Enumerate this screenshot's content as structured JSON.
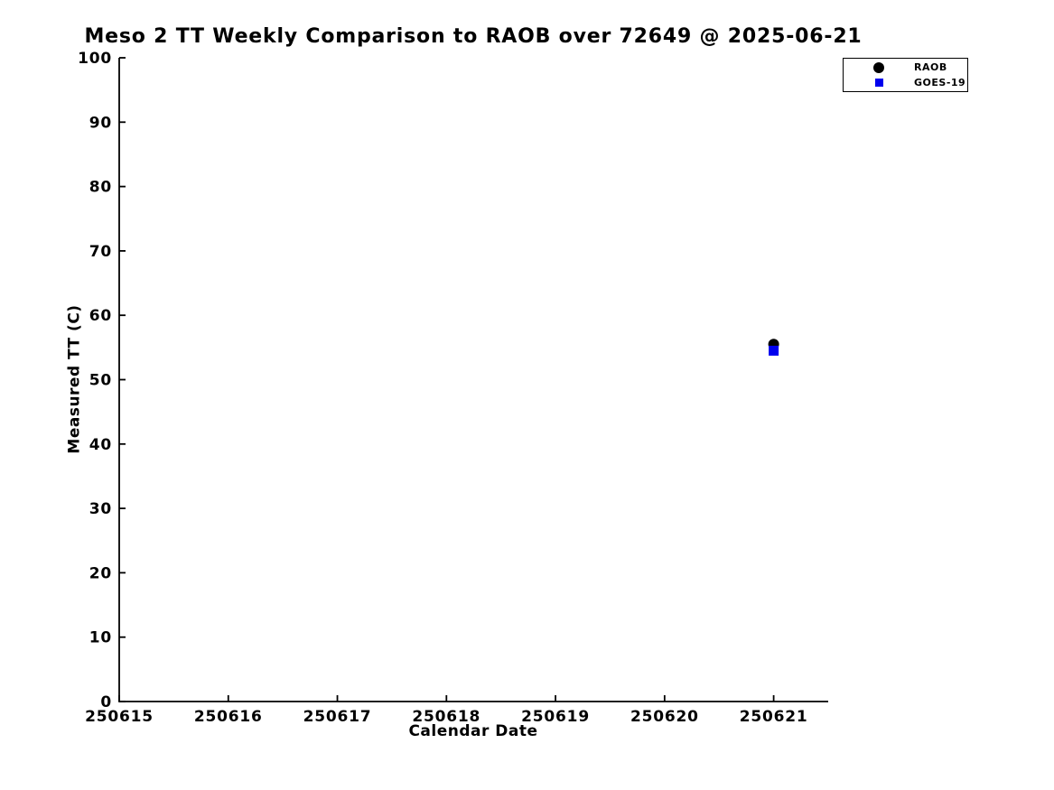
{
  "figure": {
    "background": "#ffffff",
    "text_color": "#000000"
  },
  "chart_data": {
    "type": "scatter",
    "title": "Meso 2 TT Weekly Comparison to RAOB over 72649 @ 2025-06-21",
    "xlabel": "Calendar Date",
    "ylabel": "Measured TT (C)",
    "xlim": [
      250615,
      250621.5
    ],
    "ylim": [
      0,
      100
    ],
    "x_ticks": [
      "250615",
      "250616",
      "250617",
      "250618",
      "250619",
      "250620",
      "250621"
    ],
    "y_ticks": [
      0,
      10,
      20,
      30,
      40,
      50,
      60,
      70,
      80,
      90,
      100
    ],
    "grid": false,
    "legend": {
      "position": "top-right",
      "entries": [
        {
          "label": "RAOB",
          "marker": "circle",
          "color": "#000000"
        },
        {
          "label": "GOES-19",
          "marker": "square",
          "color": "#0000ee"
        }
      ]
    },
    "series": [
      {
        "name": "RAOB",
        "marker": "circle",
        "color": "#000000",
        "points": [
          {
            "x": 250621,
            "y": 55.5
          }
        ]
      },
      {
        "name": "GOES-19",
        "marker": "square",
        "color": "#0000ee",
        "points": [
          {
            "x": 250621,
            "y": 54.5
          }
        ]
      }
    ]
  }
}
